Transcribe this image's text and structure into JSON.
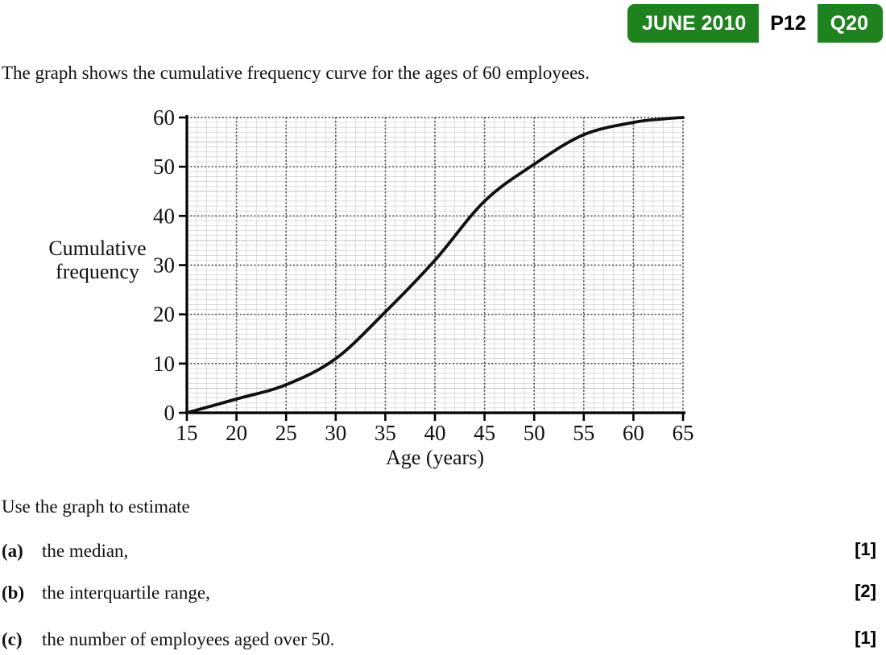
{
  "badge": {
    "session": "JUNE 2010",
    "paper": "P12",
    "question": "Q20",
    "green": "#1e821e"
  },
  "intro": "The graph shows the cumulative frequency curve for the ages of 60 employees.",
  "chart_data": {
    "type": "line",
    "title": "",
    "xlabel": "Age (years)",
    "ylabel": "Cumulative frequency",
    "ylabel_lines": [
      "Cumulative",
      "frequency"
    ],
    "xlim": [
      15,
      65
    ],
    "ylim": [
      0,
      60
    ],
    "x_ticks": [
      15,
      20,
      25,
      30,
      35,
      40,
      45,
      50,
      55,
      60,
      65
    ],
    "y_ticks": [
      0,
      10,
      20,
      30,
      40,
      50,
      60
    ],
    "grid": "1-unit fine grid with bold dotted lines every 5 years (x) and every 10 (y)",
    "legend": "none",
    "series": [
      {
        "name": "cumulative frequency curve",
        "points": [
          [
            15,
            0
          ],
          [
            20,
            2.8
          ],
          [
            25,
            5.7
          ],
          [
            30,
            11
          ],
          [
            35,
            20.5
          ],
          [
            40,
            31
          ],
          [
            45,
            43
          ],
          [
            50,
            50.5
          ],
          [
            55,
            56.5
          ],
          [
            60,
            59
          ],
          [
            63,
            59.7
          ],
          [
            65,
            60
          ]
        ]
      }
    ]
  },
  "question": {
    "prompt": "Use the graph to estimate",
    "parts": [
      {
        "label": "(a)",
        "text": "the median,",
        "marks": "[1]"
      },
      {
        "label": "(b)",
        "text": "the interquartile range,",
        "marks": "[2]"
      },
      {
        "label": "(c)",
        "text": "the number of employees aged over 50.",
        "marks": "[1]"
      }
    ]
  }
}
